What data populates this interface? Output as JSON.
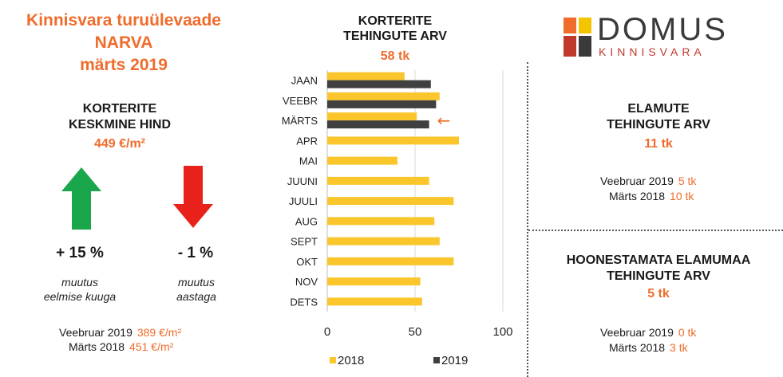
{
  "header": {
    "title_lines": [
      "Kinnisvara turuülevaade",
      "NARVA",
      "märts 2019"
    ]
  },
  "avg_price": {
    "title_lines": [
      "KORTERITE",
      "KESKMINE HIND"
    ],
    "value": "449 €/m²",
    "monthly_change": "+ 15 %",
    "monthly_note_lines": [
      "muutus",
      "eelmise kuuga"
    ],
    "yearly_change": "- 1 %",
    "yearly_note_lines": [
      "muutus",
      "aastaga"
    ],
    "comparisons": [
      {
        "label": "Veebruar 2019",
        "value": "389 €/m²"
      },
      {
        "label": "Märts 2018",
        "value": "451 €/m²"
      }
    ],
    "up_color": "#1aa64a",
    "down_color": "#e8221b"
  },
  "logo": {
    "name": "DOMUS",
    "sub": "KINNISVARA",
    "colors": [
      "#ef6c2c",
      "#f5c400",
      "#c0392b",
      "#3a3a3a"
    ]
  },
  "elamute": {
    "title_lines": [
      "ELAMUTE",
      "TEHINGUTE ARV"
    ],
    "value": "11 tk",
    "comparisons": [
      {
        "label": "Veebruar 2019",
        "value": "5 tk"
      },
      {
        "label": "Märts 2018",
        "value": "10 tk"
      }
    ]
  },
  "hoonestamata": {
    "title_lines": [
      "HOONESTAMATA ELAMUMAA",
      "TEHINGUTE ARV"
    ],
    "value": "5 tk",
    "comparisons": [
      {
        "label": "Veebruar 2019",
        "value": "0 tk"
      },
      {
        "label": "Märts 2018",
        "value": "3 tk"
      }
    ]
  },
  "chart_data": {
    "type": "bar",
    "orientation": "horizontal",
    "title_lines": [
      "KORTERITE",
      "TEHINGUTE ARV"
    ],
    "total": "58 tk",
    "categories": [
      "JAAN",
      "VEEBR",
      "MÄRTS",
      "APR",
      "MAI",
      "JUUNI",
      "JUULI",
      "AUG",
      "SEPT",
      "OKT",
      "NOV",
      "DETS"
    ],
    "series": [
      {
        "name": "2018",
        "color": "#fbc62c",
        "values": [
          44,
          64,
          51,
          75,
          40,
          58,
          72,
          61,
          64,
          72,
          53,
          54
        ]
      },
      {
        "name": "2019",
        "color": "#404040",
        "values": [
          59,
          62,
          58,
          null,
          null,
          null,
          null,
          null,
          null,
          null,
          null,
          null
        ]
      }
    ],
    "xlim": [
      0,
      100
    ],
    "xticks": [
      0,
      50,
      100
    ],
    "grid": true,
    "legend": "bottom",
    "annotation": {
      "category": "MÄRTS",
      "symbol": "←",
      "color": "#ef6c2c"
    }
  }
}
